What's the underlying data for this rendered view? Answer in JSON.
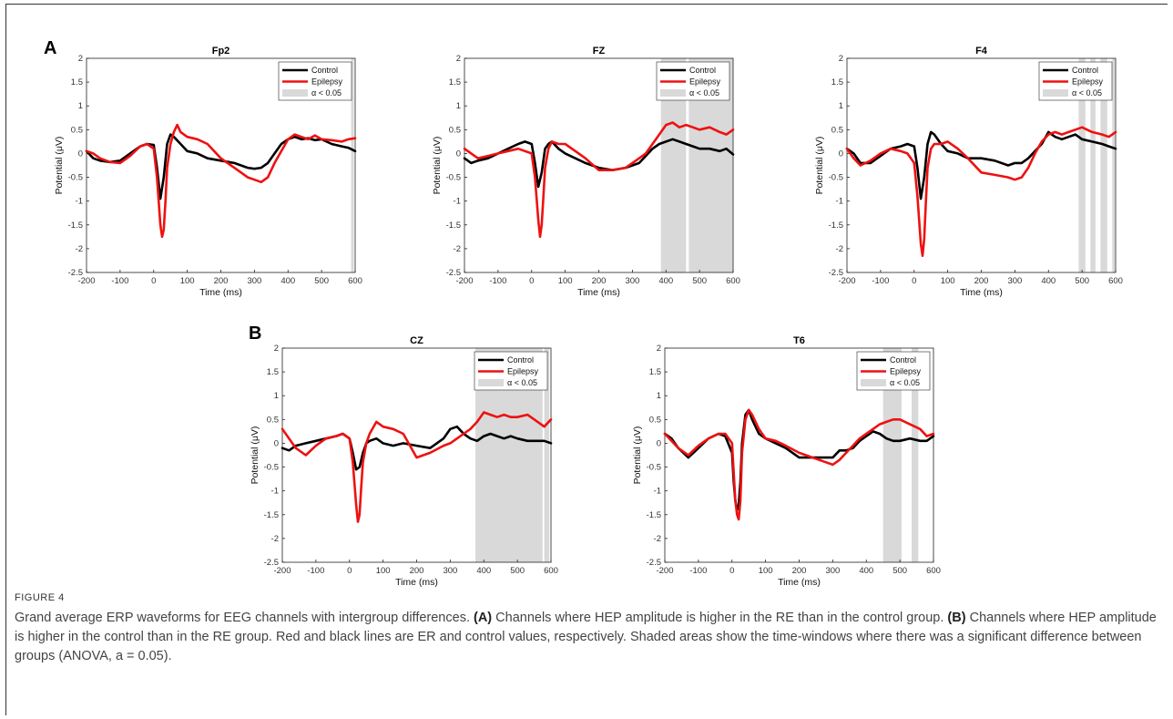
{
  "panel_labels": {
    "a": "A",
    "b": "B"
  },
  "figure_label": "FIGURE 4",
  "caption": {
    "intro": "Grand average ERP waveforms for EEG channels with intergroup differences. ",
    "a_ref": "(A)",
    "a_text": " Channels where HEP amplitude is higher in the RE than in the control group. ",
    "b_ref": "(B)",
    "b_text": " Channels where HEP amplitude is higher in the control than in the RE group. Red and black lines are ER and control values, respectively. Shaded areas show the time-windows where there was a significant difference between groups (ANOVA, a = 0.05)."
  },
  "colors": {
    "control": "#000000",
    "epilepsy": "#ee1111",
    "shade": "#d9d9d9"
  },
  "chart_data": [
    {
      "type": "line",
      "title": "Fp2",
      "xlabel": "Time (ms)",
      "ylabel": "Potential (μV)",
      "xlim": [
        -200,
        600
      ],
      "ylim": [
        -2.5,
        2
      ],
      "xticks": [
        "-200",
        "-100",
        "0",
        "100",
        "200",
        "300",
        "400",
        "500",
        "600"
      ],
      "yticks": [
        "2",
        "1.5",
        "1",
        "0.5",
        "0",
        "-0.5",
        "-1",
        "-1.5",
        "-2",
        "-2.5"
      ],
      "legend": [
        "Control",
        "Epilepsy",
        "α < 0.05"
      ],
      "legend_position": "top-right",
      "significant_windows": [
        [
          588,
          596
        ]
      ],
      "series": [
        {
          "name": "Control",
          "x": [
            -200,
            -180,
            -160,
            -130,
            -100,
            -70,
            -40,
            -20,
            0,
            10,
            20,
            30,
            40,
            50,
            60,
            80,
            100,
            130,
            160,
            200,
            240,
            280,
            300,
            320,
            340,
            360,
            380,
            400,
            420,
            440,
            460,
            480,
            500,
            530,
            560,
            580,
            600
          ],
          "y": [
            0.05,
            -0.1,
            -0.15,
            -0.18,
            -0.15,
            0,
            0.15,
            0.2,
            0.18,
            -0.3,
            -0.95,
            -0.5,
            0.2,
            0.4,
            0.35,
            0.2,
            0.05,
            0,
            -0.1,
            -0.15,
            -0.2,
            -0.3,
            -0.32,
            -0.3,
            -0.2,
            0,
            0.2,
            0.3,
            0.35,
            0.3,
            0.32,
            0.28,
            0.3,
            0.2,
            0.15,
            0.12,
            0.05
          ]
        },
        {
          "name": "Epilepsy",
          "x": [
            -200,
            -180,
            -160,
            -130,
            -100,
            -70,
            -40,
            -20,
            0,
            10,
            20,
            25,
            30,
            35,
            40,
            50,
            60,
            70,
            80,
            100,
            130,
            160,
            200,
            240,
            280,
            300,
            320,
            340,
            360,
            380,
            400,
            420,
            440,
            460,
            480,
            500,
            530,
            560,
            580,
            600
          ],
          "y": [
            0.05,
            0,
            -0.1,
            -0.18,
            -0.2,
            -0.05,
            0.15,
            0.2,
            0.1,
            -0.5,
            -1.5,
            -1.75,
            -1.6,
            -1,
            -0.3,
            0.2,
            0.45,
            0.6,
            0.45,
            0.35,
            0.3,
            0.2,
            -0.1,
            -0.3,
            -0.5,
            -0.55,
            -0.6,
            -0.5,
            -0.2,
            0.05,
            0.3,
            0.4,
            0.35,
            0.3,
            0.38,
            0.3,
            0.28,
            0.25,
            0.3,
            0.32
          ]
        }
      ]
    },
    {
      "type": "line",
      "title": "FZ",
      "xlabel": "Time (ms)",
      "ylabel": "Potential (μV)",
      "xlim": [
        -200,
        600
      ],
      "ylim": [
        -2.5,
        2
      ],
      "xticks": [
        "-200",
        "-100",
        "0",
        "100",
        "200",
        "300",
        "400",
        "500",
        "600"
      ],
      "yticks": [
        "2",
        "1.5",
        "1",
        "0.5",
        "0",
        "-0.5",
        "-1",
        "-1.5",
        "-2",
        "-2.5"
      ],
      "legend": [
        "Control",
        "Epilepsy",
        "α < 0.05"
      ],
      "legend_position": "top-right",
      "significant_windows": [
        [
          385,
          460
        ],
        [
          468,
          600
        ]
      ],
      "series": [
        {
          "name": "Control",
          "x": [
            -200,
            -180,
            -160,
            -130,
            -100,
            -70,
            -40,
            -20,
            0,
            10,
            20,
            30,
            40,
            50,
            60,
            80,
            100,
            130,
            160,
            200,
            240,
            280,
            300,
            320,
            340,
            360,
            380,
            400,
            420,
            440,
            460,
            480,
            500,
            530,
            560,
            580,
            600
          ],
          "y": [
            -0.1,
            -0.2,
            -0.15,
            -0.1,
            0,
            0.1,
            0.2,
            0.25,
            0.2,
            -0.2,
            -0.7,
            -0.4,
            0.1,
            0.2,
            0.25,
            0.1,
            0,
            -0.1,
            -0.2,
            -0.3,
            -0.35,
            -0.3,
            -0.25,
            -0.2,
            -0.05,
            0.1,
            0.2,
            0.25,
            0.3,
            0.25,
            0.2,
            0.15,
            0.1,
            0.1,
            0.05,
            0.1,
            -0.02
          ]
        },
        {
          "name": "Epilepsy",
          "x": [
            -200,
            -180,
            -160,
            -130,
            -100,
            -70,
            -40,
            -20,
            0,
            10,
            20,
            25,
            30,
            35,
            40,
            50,
            60,
            80,
            100,
            130,
            160,
            200,
            240,
            280,
            300,
            320,
            340,
            360,
            380,
            400,
            420,
            440,
            460,
            480,
            500,
            530,
            560,
            580,
            600
          ],
          "y": [
            0.1,
            0,
            -0.1,
            -0.05,
            0,
            0.05,
            0.1,
            0.05,
            0,
            -0.5,
            -1.4,
            -1.75,
            -1.5,
            -0.9,
            -0.3,
            0.1,
            0.25,
            0.2,
            0.2,
            0.05,
            -0.1,
            -0.35,
            -0.35,
            -0.3,
            -0.2,
            -0.1,
            0,
            0.2,
            0.4,
            0.6,
            0.65,
            0.55,
            0.6,
            0.55,
            0.5,
            0.55,
            0.45,
            0.4,
            0.5
          ]
        }
      ]
    },
    {
      "type": "line",
      "title": "F4",
      "xlabel": "Time (ms)",
      "ylabel": "Potential (μV)",
      "xlim": [
        -200,
        600
      ],
      "ylim": [
        -2.5,
        2
      ],
      "xticks": [
        "-200",
        "-100",
        "0",
        "100",
        "200",
        "300",
        "400",
        "500",
        "600"
      ],
      "yticks": [
        "2",
        "1.5",
        "1",
        "0.5",
        "0",
        "-0.5",
        "-1",
        "-1.5",
        "-2",
        "-2.5"
      ],
      "legend": [
        "Control",
        "Epilepsy",
        "α < 0.05"
      ],
      "legend_position": "top-right",
      "significant_windows": [
        [
          490,
          510
        ],
        [
          525,
          540
        ],
        [
          555,
          575
        ],
        [
          590,
          598
        ]
      ],
      "series": [
        {
          "name": "Control",
          "x": [
            -200,
            -180,
            -160,
            -130,
            -100,
            -70,
            -40,
            -20,
            0,
            10,
            20,
            30,
            40,
            50,
            60,
            80,
            100,
            130,
            160,
            200,
            240,
            280,
            300,
            320,
            340,
            360,
            380,
            400,
            420,
            440,
            460,
            480,
            500,
            530,
            560,
            580,
            600
          ],
          "y": [
            0.1,
            0,
            -0.2,
            -0.2,
            -0.05,
            0.1,
            0.15,
            0.2,
            0.15,
            -0.3,
            -0.95,
            -0.5,
            0.2,
            0.45,
            0.4,
            0.2,
            0.05,
            0,
            -0.1,
            -0.1,
            -0.15,
            -0.25,
            -0.2,
            -0.2,
            -0.1,
            0.05,
            0.2,
            0.45,
            0.35,
            0.3,
            0.35,
            0.4,
            0.3,
            0.25,
            0.2,
            0.15,
            0.1
          ]
        },
        {
          "name": "Epilepsy",
          "x": [
            -200,
            -180,
            -160,
            -130,
            -100,
            -70,
            -40,
            -20,
            0,
            10,
            20,
            25,
            30,
            35,
            40,
            50,
            60,
            80,
            100,
            130,
            160,
            200,
            240,
            280,
            300,
            320,
            340,
            360,
            380,
            400,
            420,
            440,
            460,
            480,
            500,
            530,
            560,
            580,
            600
          ],
          "y": [
            0.1,
            -0.1,
            -0.25,
            -0.15,
            0,
            0.1,
            0.05,
            0,
            -0.2,
            -0.9,
            -1.9,
            -2.15,
            -1.8,
            -1,
            -0.3,
            0.1,
            0.2,
            0.2,
            0.25,
            0.1,
            -0.1,
            -0.4,
            -0.45,
            -0.5,
            -0.55,
            -0.5,
            -0.3,
            0,
            0.25,
            0.4,
            0.45,
            0.4,
            0.45,
            0.5,
            0.55,
            0.45,
            0.4,
            0.35,
            0.45
          ]
        }
      ]
    },
    {
      "type": "line",
      "title": "CZ",
      "xlabel": "Time (ms)",
      "ylabel": "Potential (μV)",
      "xlim": [
        -200,
        600
      ],
      "ylim": [
        -2.5,
        2
      ],
      "xticks": [
        "-200",
        "-100",
        "0",
        "100",
        "200",
        "300",
        "400",
        "500",
        "600"
      ],
      "yticks": [
        "2",
        "1.5",
        "1",
        "0.5",
        "0",
        "-0.5",
        "-1",
        "-1.5",
        "-2",
        "-2.5"
      ],
      "legend": [
        "Control",
        "Epilepsy",
        "α < 0.05"
      ],
      "legend_position": "top-right",
      "significant_windows": [
        [
          375,
          575
        ],
        [
          580,
          595
        ]
      ],
      "series": [
        {
          "name": "Control",
          "x": [
            -200,
            -180,
            -160,
            -130,
            -100,
            -70,
            -40,
            -20,
            0,
            10,
            20,
            30,
            40,
            50,
            60,
            80,
            100,
            130,
            160,
            200,
            240,
            280,
            300,
            320,
            340,
            360,
            380,
            400,
            420,
            440,
            460,
            480,
            500,
            530,
            560,
            580,
            600
          ],
          "y": [
            -0.1,
            -0.15,
            -0.05,
            0,
            0.05,
            0.1,
            0.15,
            0.2,
            0.1,
            -0.2,
            -0.55,
            -0.5,
            -0.2,
            0,
            0.05,
            0.1,
            0,
            -0.05,
            0,
            -0.05,
            -0.1,
            0.1,
            0.3,
            0.35,
            0.2,
            0.1,
            0.05,
            0.15,
            0.2,
            0.15,
            0.1,
            0.15,
            0.1,
            0.05,
            0.05,
            0.05,
            0
          ]
        },
        {
          "name": "Epilepsy",
          "x": [
            -200,
            -180,
            -160,
            -130,
            -100,
            -70,
            -40,
            -20,
            0,
            10,
            20,
            25,
            30,
            35,
            40,
            50,
            60,
            80,
            100,
            130,
            160,
            200,
            240,
            280,
            300,
            320,
            340,
            360,
            380,
            400,
            420,
            440,
            460,
            480,
            500,
            530,
            560,
            580,
            600
          ],
          "y": [
            0.3,
            0.1,
            -0.1,
            -0.25,
            -0.05,
            0.1,
            0.15,
            0.2,
            0.1,
            -0.4,
            -1.3,
            -1.65,
            -1.5,
            -0.9,
            -0.4,
            0,
            0.2,
            0.45,
            0.35,
            0.3,
            0.2,
            -0.3,
            -0.2,
            -0.05,
            0,
            0.1,
            0.2,
            0.3,
            0.45,
            0.65,
            0.6,
            0.55,
            0.6,
            0.55,
            0.55,
            0.6,
            0.45,
            0.35,
            0.5
          ]
        }
      ]
    },
    {
      "type": "line",
      "title": "T6",
      "xlabel": "Time (ms)",
      "ylabel": "Potential (μV)",
      "xlim": [
        -200,
        600
      ],
      "ylim": [
        -2.5,
        2
      ],
      "xticks": [
        "-200",
        "-100",
        "0",
        "100",
        "200",
        "300",
        "400",
        "500",
        "600"
      ],
      "yticks": [
        "2",
        "1.5",
        "1",
        "0.5",
        "0",
        "-0.5",
        "-1",
        "-1.5",
        "-2",
        "-2.5"
      ],
      "legend": [
        "Control",
        "Epilepsy",
        "α < 0.05"
      ],
      "legend_position": "top-right",
      "significant_windows": [
        [
          450,
          505
        ],
        [
          535,
          555
        ]
      ],
      "series": [
        {
          "name": "Control",
          "x": [
            -200,
            -180,
            -160,
            -130,
            -100,
            -70,
            -40,
            -20,
            0,
            5,
            10,
            15,
            20,
            25,
            30,
            40,
            50,
            60,
            80,
            100,
            130,
            160,
            200,
            240,
            280,
            300,
            320,
            340,
            360,
            380,
            400,
            420,
            440,
            460,
            480,
            500,
            530,
            560,
            580,
            600
          ],
          "y": [
            0.2,
            0.1,
            -0.1,
            -0.3,
            -0.1,
            0.1,
            0.2,
            0.15,
            -0.2,
            -0.8,
            -1.2,
            -1.4,
            -1.3,
            -0.8,
            0,
            0.6,
            0.7,
            0.5,
            0.2,
            0.1,
            0,
            -0.1,
            -0.3,
            -0.3,
            -0.3,
            -0.3,
            -0.15,
            -0.15,
            -0.1,
            0.05,
            0.15,
            0.25,
            0.2,
            0.1,
            0.05,
            0.05,
            0.1,
            0.05,
            0.05,
            0.15
          ]
        },
        {
          "name": "Epilepsy",
          "x": [
            -200,
            -180,
            -160,
            -130,
            -100,
            -70,
            -40,
            -20,
            0,
            5,
            10,
            15,
            20,
            25,
            30,
            40,
            50,
            60,
            80,
            100,
            130,
            160,
            200,
            240,
            280,
            300,
            320,
            340,
            360,
            380,
            400,
            420,
            440,
            460,
            480,
            500,
            530,
            560,
            580,
            600
          ],
          "y": [
            0.2,
            0.05,
            -0.1,
            -0.25,
            -0.05,
            0.1,
            0.2,
            0.2,
            0,
            -0.6,
            -1.2,
            -1.5,
            -1.6,
            -1.2,
            -0.2,
            0.5,
            0.7,
            0.6,
            0.3,
            0.1,
            0.05,
            -0.05,
            -0.2,
            -0.3,
            -0.4,
            -0.45,
            -0.35,
            -0.2,
            -0.05,
            0.1,
            0.2,
            0.3,
            0.4,
            0.45,
            0.5,
            0.5,
            0.4,
            0.3,
            0.15,
            0.2
          ]
        }
      ]
    }
  ]
}
